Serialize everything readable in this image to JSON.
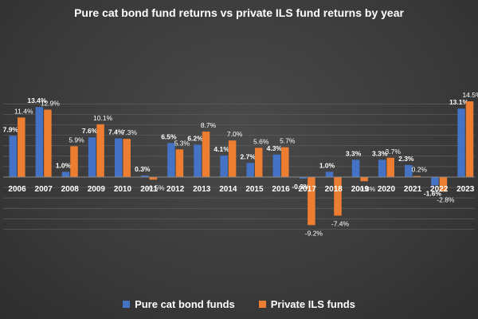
{
  "chart_data": {
    "type": "bar",
    "title": "Pure cat bond fund returns vs private ILS fund returns by year",
    "categories": [
      "2006",
      "2007",
      "2008",
      "2009",
      "2010",
      "2011",
      "2012",
      "2013",
      "2014",
      "2015",
      "2016",
      "2017",
      "2018",
      "2019",
      "2020",
      "2021",
      "2022",
      "2023"
    ],
    "series": [
      {
        "name": "Pure cat bond funds",
        "color": "#4472c4",
        "values": [
          7.9,
          13.4,
          1.0,
          7.6,
          7.4,
          0.3,
          6.5,
          6.2,
          4.1,
          2.7,
          4.3,
          -0.3,
          1.0,
          3.3,
          3.3,
          2.3,
          -1.6,
          13.1
        ],
        "labels": [
          "7.9%",
          "13.4%",
          "1.0%",
          "7.6%",
          "7.4%",
          "0.3%",
          "6.5%",
          "6.2%",
          "4.1%",
          "2.7%",
          "4.3%",
          "-0.3%",
          "1.0%",
          "3.3%",
          "3.3%",
          "2.3%",
          "-1.6%",
          "13.1%"
        ]
      },
      {
        "name": "Private ILS funds",
        "color": "#ed7d31",
        "values": [
          11.4,
          12.9,
          5.9,
          10.1,
          7.3,
          -0.5,
          5.3,
          8.7,
          7.0,
          5.6,
          5.7,
          -9.2,
          -7.4,
          -0.8,
          3.7,
          0.2,
          -2.8,
          14.5
        ],
        "labels": [
          "11.4%",
          "12.9%",
          "5.9%",
          "10.1%",
          "7.3%",
          "-0.5%",
          "5.3%",
          "8.7%",
          "7.0%",
          "5.6%",
          "5.7%",
          "-9.2%",
          "-7.4%",
          "-0.8%",
          "3.7%",
          "0.2%",
          "-2.8%",
          "14.5%"
        ]
      }
    ],
    "ylim": [
      -10.5,
      15
    ],
    "grid": true,
    "legend": "bottom"
  }
}
